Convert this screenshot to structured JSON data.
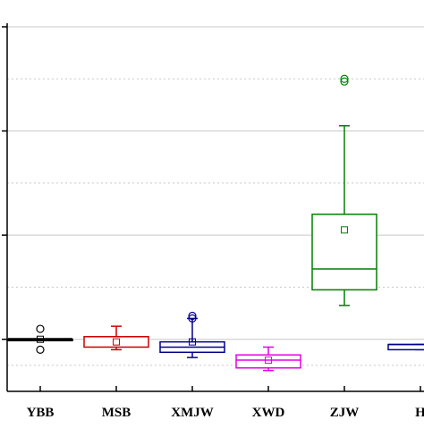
{
  "chart_data": {
    "type": "box",
    "categories": [
      "YBB",
      "MSB",
      "XMJW",
      "XWD",
      "ZJW",
      "H"
    ],
    "colors": {
      "YBB": "#000000",
      "MSB": "#cc0000",
      "XMJW": "#00008b",
      "XWD": "#e600e6",
      "ZJW": "#008000",
      "H": "#00008b"
    },
    "series": [
      {
        "category": "YBB",
        "whisker_low": 0.0,
        "q1": 0.0,
        "median": 0.0,
        "q3": 0.0,
        "whisker_high": 0.0,
        "mean": 0.0,
        "outliers": [
          0.4,
          -0.4
        ]
      },
      {
        "category": "MSB",
        "whisker_low": -0.4,
        "q1": -0.3,
        "median": 0.1,
        "q3": 0.1,
        "whisker_high": 0.5,
        "mean": -0.1,
        "outliers": []
      },
      {
        "category": "XMJW",
        "whisker_low": -0.7,
        "q1": -0.5,
        "median": -0.3,
        "q3": -0.1,
        "whisker_high": 0.8,
        "mean": -0.1,
        "outliers": [
          0.8,
          0.9
        ]
      },
      {
        "category": "XWD",
        "whisker_low": -1.2,
        "q1": -1.1,
        "median": -0.8,
        "q3": -0.6,
        "whisker_high": -0.3,
        "mean": -0.8,
        "outliers": []
      },
      {
        "category": "ZJW",
        "whisker_low": 1.3,
        "q1": 1.9,
        "median": 2.7,
        "q3": 4.8,
        "whisker_high": 8.2,
        "mean": 4.2,
        "outliers": [
          9.9,
          10.0
        ]
      },
      {
        "category": "H",
        "whisker_low": -0.4,
        "q1": -0.4,
        "median": -0.2,
        "q3": -0.2,
        "whisker_high": -0.2,
        "mean": null,
        "outliers": []
      }
    ],
    "ylim": [
      -2.0,
      12.0
    ],
    "grid": "horizontal",
    "title": "",
    "xlabel": "",
    "ylabel": ""
  }
}
